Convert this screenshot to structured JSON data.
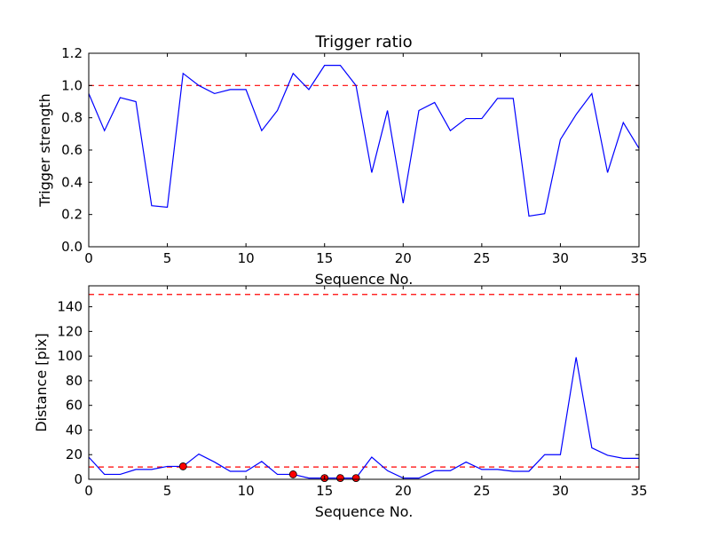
{
  "chart_data": [
    {
      "type": "line",
      "title": "Trigger ratio",
      "xlabel": "Sequence No.",
      "ylabel": "Trigger strength",
      "xlim": [
        0,
        35
      ],
      "ylim": [
        0,
        1.2
      ],
      "xticks": [
        0,
        5,
        10,
        15,
        20,
        25,
        30,
        35
      ],
      "xtick_labels": [
        "0",
        "5",
        "10",
        "15",
        "20",
        "25",
        "30",
        "35"
      ],
      "yticks": [
        0,
        0.2,
        0.4,
        0.6,
        0.8,
        1.0,
        1.2
      ],
      "ytick_labels": [
        "0.0",
        "0.2",
        "0.4",
        "0.6",
        "0.8",
        "1.0",
        "1.2"
      ],
      "grid": false,
      "series": [
        {
          "name": "trigger strength",
          "color": "#0000ff",
          "x": [
            0,
            1,
            2,
            3,
            4,
            5,
            6,
            7,
            8,
            9,
            10,
            11,
            12,
            13,
            14,
            15,
            16,
            17,
            18,
            19,
            20,
            21,
            22,
            23,
            24,
            25,
            26,
            27,
            28,
            29,
            30,
            31,
            32,
            33,
            34,
            35
          ],
          "y": [
            0.95,
            0.72,
            0.925,
            0.9,
            0.255,
            0.245,
            1.075,
            1.0,
            0.95,
            0.975,
            0.975,
            0.72,
            0.845,
            1.075,
            0.975,
            1.125,
            1.125,
            1.0,
            0.46,
            0.845,
            0.27,
            0.845,
            0.895,
            0.72,
            0.795,
            0.795,
            0.92,
            0.92,
            0.19,
            0.205,
            0.665,
            0.82,
            0.95,
            0.46,
            0.77,
            0.61
          ]
        }
      ],
      "hlines": [
        {
          "y": 1.0,
          "color": "#ff0000",
          "style": "dashed"
        }
      ]
    },
    {
      "type": "line",
      "title": "",
      "xlabel": "Sequence No.",
      "ylabel": "Distance [pix]",
      "xlim": [
        0,
        35
      ],
      "ylim": [
        0,
        157
      ],
      "xticks": [
        0,
        5,
        10,
        15,
        20,
        25,
        30,
        35
      ],
      "xtick_labels": [
        "0",
        "5",
        "10",
        "15",
        "20",
        "25",
        "30",
        "35"
      ],
      "yticks": [
        0,
        20,
        40,
        60,
        80,
        100,
        120,
        140
      ],
      "ytick_labels": [
        "0",
        "20",
        "40",
        "60",
        "80",
        "100",
        "120",
        "140"
      ],
      "grid": false,
      "series": [
        {
          "name": "distance",
          "color": "#0000ff",
          "x": [
            0,
            1,
            2,
            3,
            4,
            5,
            6,
            7,
            8,
            9,
            10,
            11,
            12,
            13,
            14,
            15,
            16,
            17,
            18,
            19,
            20,
            21,
            22,
            23,
            24,
            25,
            26,
            27,
            28,
            29,
            30,
            31,
            32,
            33,
            34,
            35
          ],
          "y": [
            18,
            4,
            4,
            8,
            8,
            10.5,
            10.5,
            20.5,
            14,
            6.5,
            6.5,
            14.5,
            4,
            4,
            1,
            1,
            1,
            1,
            18,
            7,
            1,
            1,
            7,
            7,
            14,
            8,
            8,
            6.5,
            6.5,
            20,
            20,
            99,
            25.5,
            19.5,
            17,
            17
          ]
        }
      ],
      "markers": {
        "color": "#ff0000",
        "x": [
          6,
          13,
          15,
          16,
          17
        ],
        "y": [
          10.5,
          4,
          1,
          1,
          1
        ]
      },
      "hlines": [
        {
          "y": 10,
          "color": "#ff0000",
          "style": "dashed"
        },
        {
          "y": 150,
          "color": "#ff0000",
          "style": "dashed"
        }
      ]
    }
  ]
}
